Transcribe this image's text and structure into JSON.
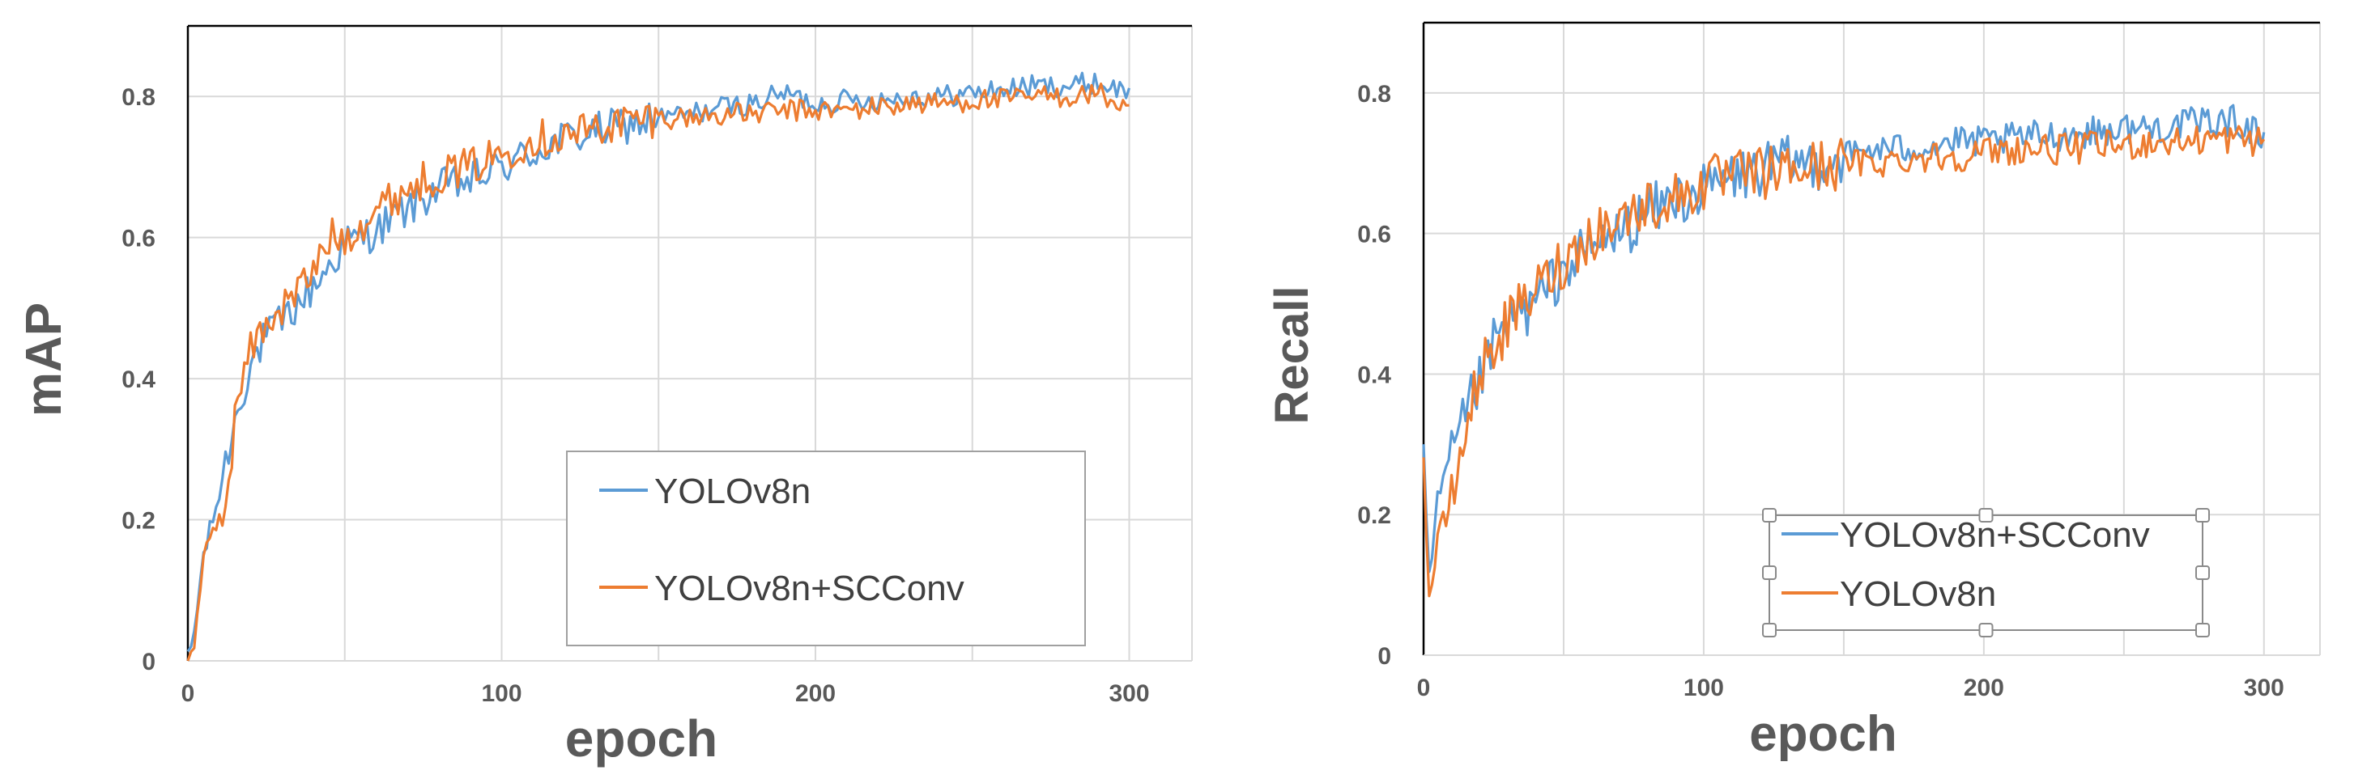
{
  "chart_data": [
    {
      "type": "line",
      "xlabel": "epoch",
      "ylabel": "mAP",
      "xlim": [
        0,
        320
      ],
      "ylim": [
        0,
        0.9
      ],
      "xticks": [
        0,
        100,
        200,
        300
      ],
      "yticks": [
        0,
        0.2,
        0.4,
        0.6,
        0.8
      ],
      "xtick_labels": [
        "0",
        "100",
        "200",
        "300"
      ],
      "ytick_labels": [
        "0",
        "0.2",
        "0.4",
        "0.6",
        "0.8"
      ],
      "grid": true,
      "legend": {
        "placement": "bottom-right",
        "entries": [
          "YOLOv8n",
          "YOLOv8n+SCConv"
        ]
      },
      "series": [
        {
          "name": "YOLOv8n",
          "color": "#5b9bd5",
          "x": [
            0,
            2,
            5,
            8,
            12,
            16,
            20,
            25,
            30,
            40,
            50,
            60,
            70,
            80,
            90,
            100,
            110,
            120,
            130,
            140,
            150,
            160,
            170,
            180,
            190,
            200,
            210,
            220,
            230,
            240,
            250,
            260,
            270,
            280,
            290,
            300
          ],
          "y": [
            0.0,
            0.04,
            0.15,
            0.2,
            0.28,
            0.36,
            0.42,
            0.46,
            0.48,
            0.53,
            0.59,
            0.61,
            0.64,
            0.67,
            0.68,
            0.7,
            0.72,
            0.74,
            0.75,
            0.76,
            0.77,
            0.775,
            0.785,
            0.79,
            0.805,
            0.79,
            0.795,
            0.795,
            0.8,
            0.8,
            0.805,
            0.81,
            0.815,
            0.815,
            0.82,
            0.805
          ]
        },
        {
          "name": "YOLOv8n+SCConv",
          "color": "#ed7d31",
          "x": [
            0,
            2,
            5,
            8,
            12,
            16,
            20,
            25,
            30,
            40,
            45,
            50,
            60,
            70,
            80,
            90,
            100,
            110,
            120,
            130,
            140,
            150,
            160,
            170,
            180,
            190,
            200,
            210,
            220,
            230,
            240,
            250,
            260,
            270,
            280,
            290,
            300
          ],
          "y": [
            0.0,
            0.03,
            0.14,
            0.18,
            0.22,
            0.38,
            0.44,
            0.48,
            0.5,
            0.55,
            0.6,
            0.6,
            0.64,
            0.67,
            0.69,
            0.7,
            0.72,
            0.74,
            0.745,
            0.755,
            0.765,
            0.77,
            0.77,
            0.775,
            0.775,
            0.78,
            0.78,
            0.78,
            0.785,
            0.79,
            0.79,
            0.795,
            0.795,
            0.8,
            0.8,
            0.805,
            0.78
          ]
        }
      ]
    },
    {
      "type": "line",
      "xlabel": "epoch",
      "ylabel": "Recall",
      "xlim": [
        0,
        320
      ],
      "ylim": [
        0,
        0.9
      ],
      "xticks": [
        0,
        100,
        200,
        300
      ],
      "yticks": [
        0,
        0.2,
        0.4,
        0.6,
        0.8
      ],
      "xtick_labels": [
        "0",
        "100",
        "200",
        "300"
      ],
      "ytick_labels": [
        "0",
        "0.2",
        "0.4",
        "0.6",
        "0.8"
      ],
      "grid": true,
      "legend": {
        "placement": "bottom-center",
        "entries": [
          "YOLOv8n+SCConv",
          "YOLOv8n"
        ]
      },
      "series": [
        {
          "name": "YOLOv8n+SCConv",
          "color": "#5b9bd5",
          "x": [
            0,
            2,
            5,
            10,
            15,
            20,
            25,
            30,
            40,
            50,
            60,
            70,
            80,
            90,
            100,
            110,
            120,
            130,
            140,
            150,
            160,
            170,
            180,
            190,
            200,
            210,
            220,
            230,
            240,
            250,
            260,
            270,
            280,
            290,
            300
          ],
          "y": [
            0.28,
            0.1,
            0.22,
            0.28,
            0.34,
            0.39,
            0.44,
            0.47,
            0.5,
            0.55,
            0.58,
            0.6,
            0.63,
            0.65,
            0.66,
            0.68,
            0.69,
            0.7,
            0.7,
            0.71,
            0.72,
            0.72,
            0.725,
            0.73,
            0.73,
            0.735,
            0.74,
            0.74,
            0.745,
            0.75,
            0.75,
            0.755,
            0.76,
            0.76,
            0.74
          ]
        },
        {
          "name": "YOLOv8n",
          "color": "#ed7d31",
          "x": [
            0,
            2,
            5,
            10,
            15,
            20,
            25,
            30,
            40,
            50,
            60,
            70,
            80,
            90,
            100,
            110,
            120,
            130,
            140,
            150,
            160,
            170,
            180,
            190,
            200,
            210,
            220,
            230,
            240,
            250,
            260,
            270,
            280,
            290,
            300
          ],
          "y": [
            0.28,
            0.08,
            0.16,
            0.22,
            0.32,
            0.4,
            0.44,
            0.47,
            0.52,
            0.56,
            0.6,
            0.62,
            0.64,
            0.65,
            0.67,
            0.68,
            0.685,
            0.69,
            0.695,
            0.7,
            0.7,
            0.705,
            0.71,
            0.71,
            0.715,
            0.72,
            0.72,
            0.72,
            0.725,
            0.725,
            0.73,
            0.73,
            0.735,
            0.735,
            0.73
          ]
        }
      ]
    }
  ]
}
